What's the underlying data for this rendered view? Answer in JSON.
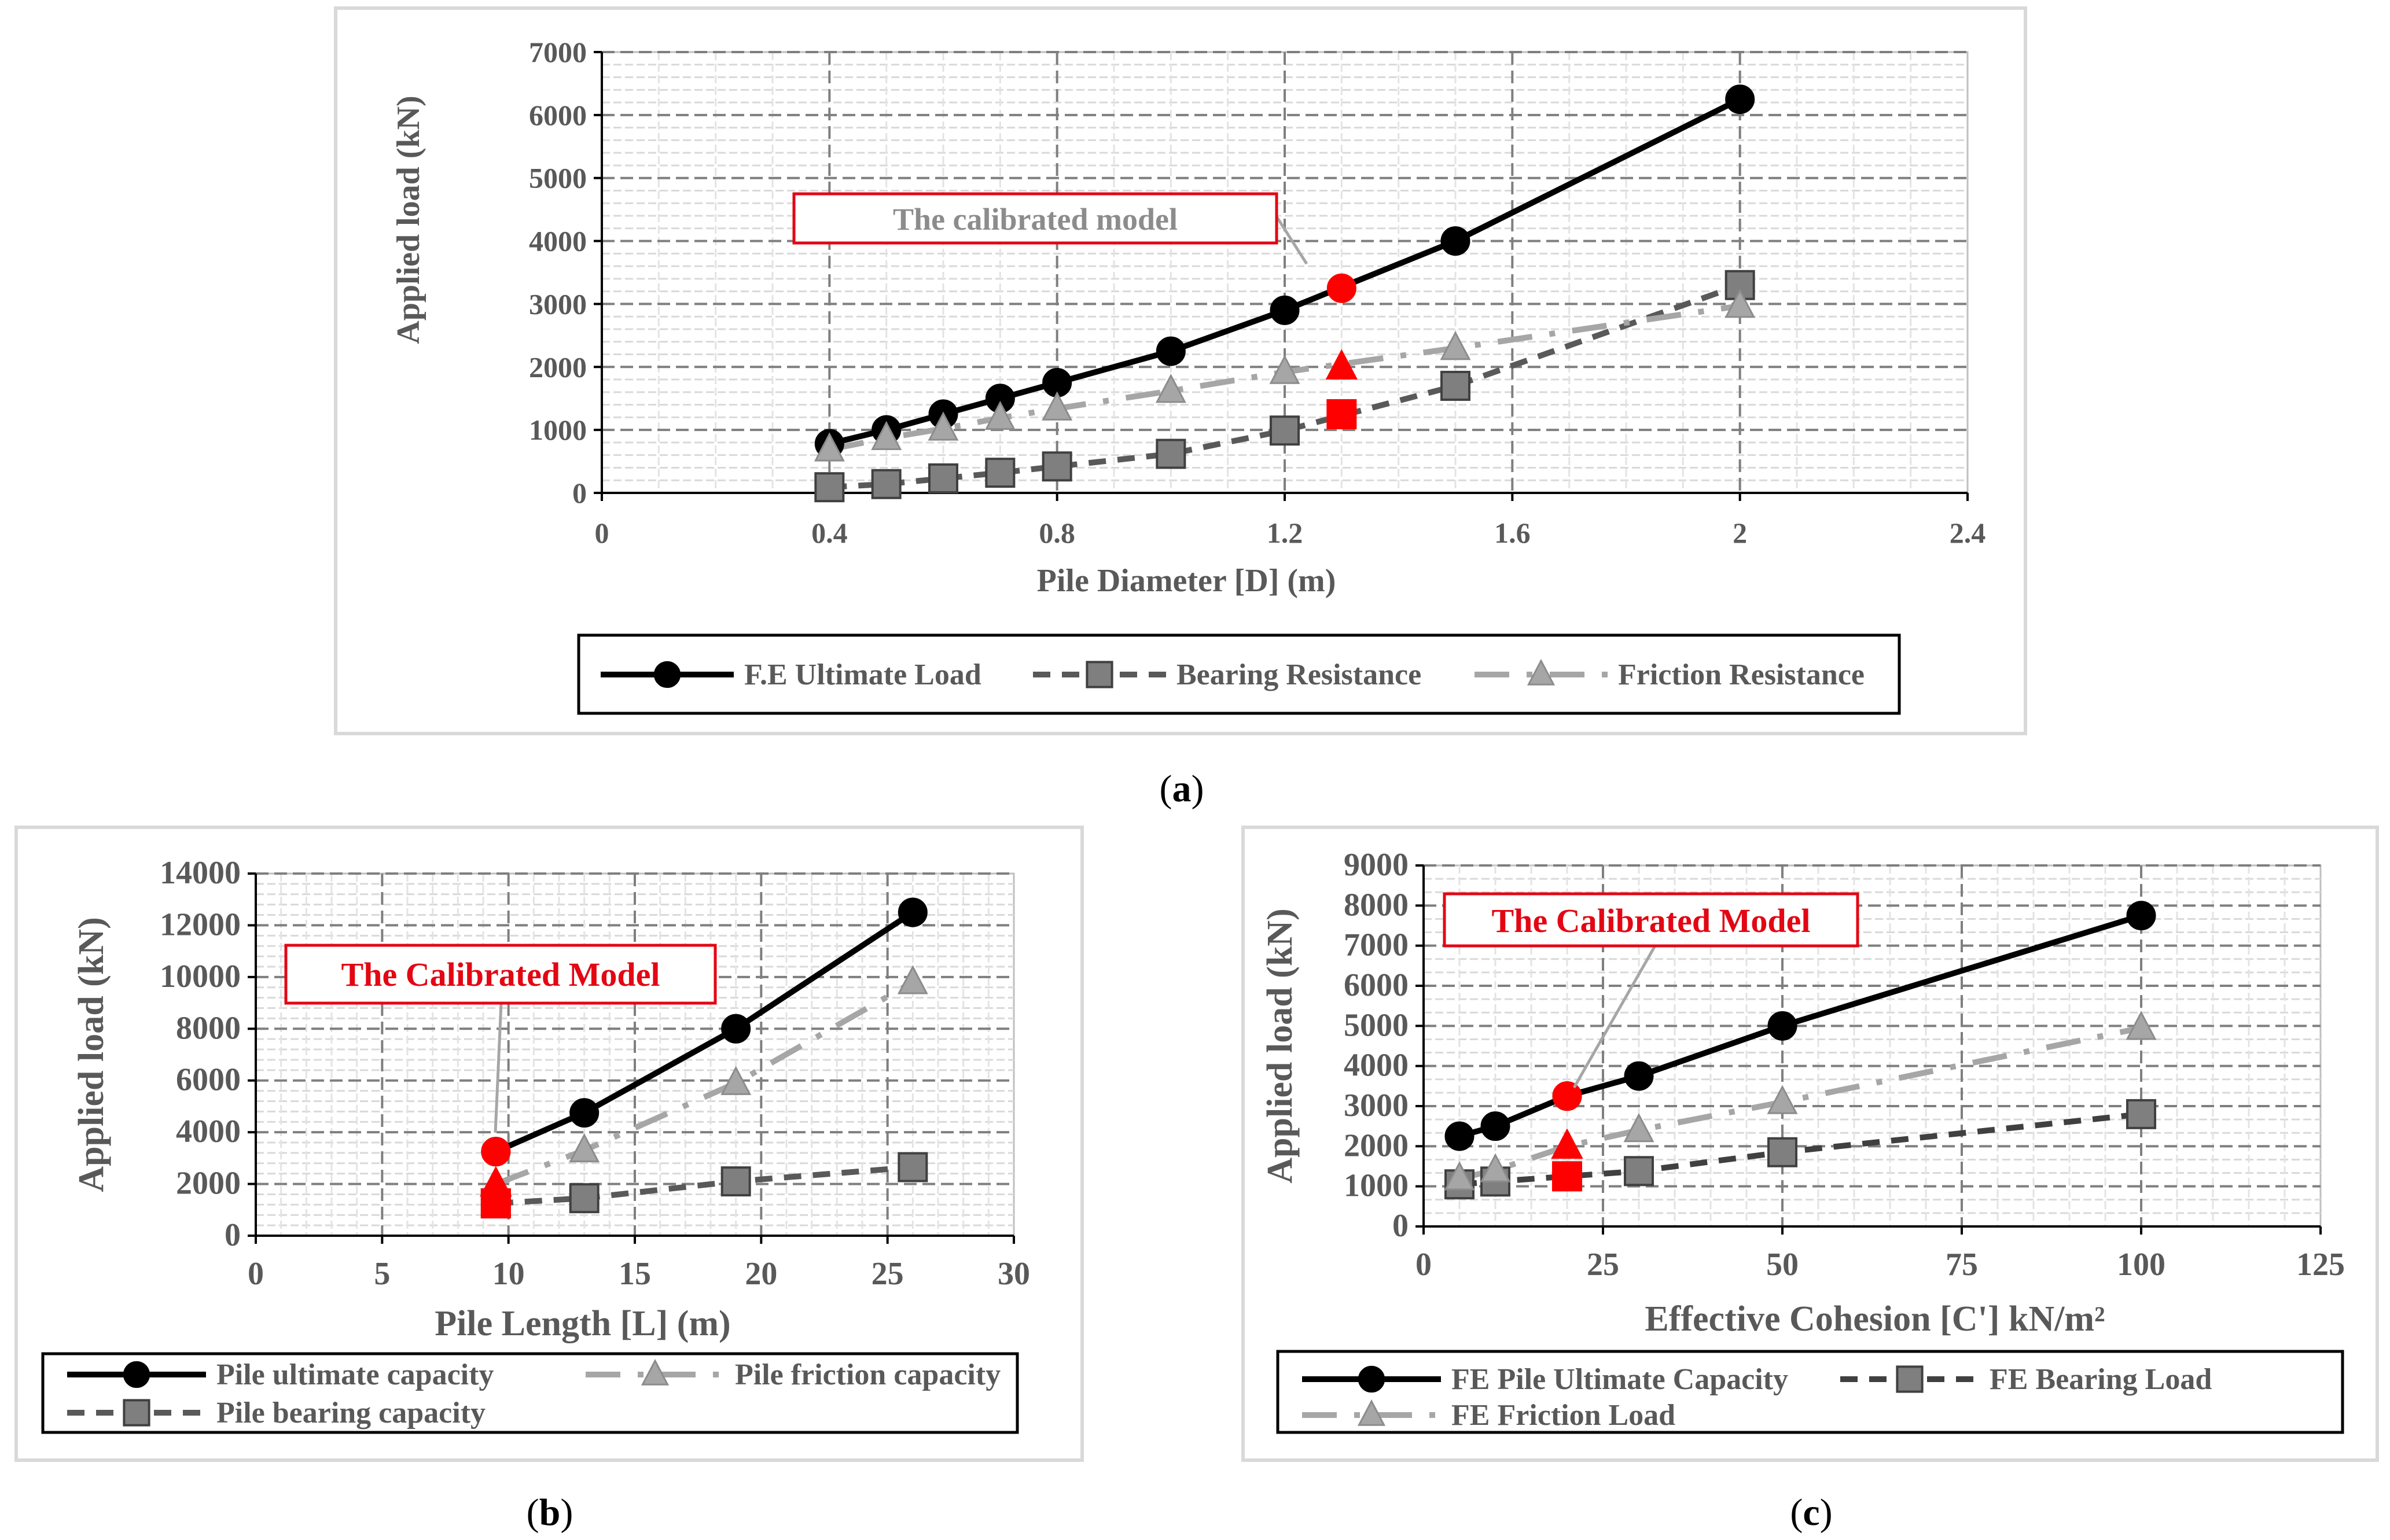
{
  "panels": {
    "a": {
      "caption_letter": "a",
      "chart_data": {
        "type": "line",
        "title": "",
        "xlabel": "Pile Diameter [D] (m)",
        "ylabel": "Applied load (kN)",
        "xlim": [
          0,
          2.4
        ],
        "ylim": [
          0,
          7000
        ],
        "xticks": [
          0,
          0.4,
          0.8,
          1.2,
          1.6,
          2,
          2.4
        ],
        "xtick_labels": [
          "0",
          "0.4",
          "0.8",
          "1.2",
          "1.6",
          "2",
          "2.4"
        ],
        "yticks": [
          0,
          1000,
          2000,
          3000,
          4000,
          5000,
          6000,
          7000
        ],
        "ytick_labels": [
          "0",
          "1000",
          "2000",
          "3000",
          "4000",
          "5000",
          "6000",
          "7000"
        ],
        "series": [
          {
            "name": "F.E Ultimate Load",
            "style": "solid-circle",
            "color": "#000000",
            "x": [
              0.4,
              0.5,
              0.6,
              0.7,
              0.8,
              1.0,
              1.2,
              1.5,
              2.0
            ],
            "y": [
              780,
              1000,
              1250,
              1500,
              1750,
              2250,
              2900,
              4000,
              6250
            ]
          },
          {
            "name": "Bearing Resistance",
            "style": "dash-square",
            "color": "#595959",
            "x": [
              0.4,
              0.5,
              0.6,
              0.7,
              0.8,
              1.0,
              1.2,
              1.5,
              2.0
            ],
            "y": [
              90,
              140,
              230,
              320,
              420,
              620,
              990,
              1700,
              3300
            ]
          },
          {
            "name": "Friction Resistance",
            "style": "longdash-triangle",
            "color": "#a6a6a6",
            "x": [
              0.4,
              0.5,
              0.6,
              0.7,
              0.8,
              1.0,
              1.2,
              1.5,
              2.0
            ],
            "y": [
              690,
              870,
              1020,
              1190,
              1340,
              1620,
              1920,
              2300,
              2970
            ]
          }
        ],
        "calibrated": {
          "x": 1.3,
          "ultimate": 3250,
          "friction": 2000,
          "bearing": 1250
        },
        "callout": {
          "text": "The calibrated model",
          "legend_position": "below"
        }
      }
    },
    "b": {
      "caption_letter": "b",
      "chart_data": {
        "type": "line",
        "title": "",
        "xlabel": "Pile Length [L] (m)",
        "ylabel": "Applied load (kN)",
        "xlim": [
          0,
          30
        ],
        "ylim": [
          0,
          14000
        ],
        "xticks": [
          0,
          5,
          10,
          15,
          20,
          25,
          30
        ],
        "xtick_labels": [
          "0",
          "5",
          "10",
          "15",
          "20",
          "25",
          "30"
        ],
        "yticks": [
          0,
          2000,
          4000,
          6000,
          8000,
          10000,
          12000,
          14000
        ],
        "ytick_labels": [
          "0",
          "2000",
          "4000",
          "6000",
          "8000",
          "10000",
          "12000",
          "14000"
        ],
        "series": [
          {
            "name": "Pile ultimate capacity",
            "style": "solid-circle",
            "color": "#000000",
            "x": [
              9.5,
              13,
              19,
              26
            ],
            "y": [
              3250,
              4750,
              8000,
              12500
            ]
          },
          {
            "name": "Pile friction capacity",
            "style": "longdash-triangle",
            "color": "#a6a6a6",
            "x": [
              9.5,
              13,
              19,
              26
            ],
            "y": [
              2000,
              3300,
              5900,
              9800
            ]
          },
          {
            "name": "Pile bearing capacity",
            "style": "dash-square",
            "color": "#595959",
            "x": [
              9.5,
              13,
              19,
              26
            ],
            "y": [
              1250,
              1450,
              2100,
              2650
            ]
          }
        ],
        "calibrated": {
          "x": 9.5,
          "ultimate": 3250,
          "friction": 2000,
          "bearing": 1250
        },
        "callout": {
          "text": "The Calibrated Model",
          "legend_position": "below"
        }
      }
    },
    "c": {
      "caption_letter": "c",
      "chart_data": {
        "type": "line",
        "title": "",
        "xlabel": "Effective Cohesion [C'] kN/m²",
        "ylabel": "Applied load (kN)",
        "xlim": [
          0,
          125
        ],
        "ylim": [
          0,
          9000
        ],
        "xticks": [
          0,
          25,
          50,
          75,
          100,
          125
        ],
        "xtick_labels": [
          "0",
          "25",
          "50",
          "75",
          "100",
          "125"
        ],
        "yticks": [
          0,
          1000,
          2000,
          3000,
          4000,
          5000,
          6000,
          7000,
          8000,
          9000
        ],
        "ytick_labels": [
          "0",
          "1000",
          "2000",
          "3000",
          "4000",
          "5000",
          "6000",
          "7000",
          "8000",
          "9000"
        ],
        "series": [
          {
            "name": "FE Pile Ultimate Capacity",
            "style": "solid-circle",
            "color": "#000000",
            "x": [
              5,
              10,
              20,
              30,
              50,
              100
            ],
            "y": [
              2250,
              2500,
              3250,
              3750,
              5000,
              7750
            ]
          },
          {
            "name": "FE Bearing Load",
            "style": "dash-square",
            "color": "#404040",
            "x": [
              5,
              10,
              20,
              30,
              50,
              100
            ],
            "y": [
              1050,
              1120,
              1250,
              1380,
              1850,
              2800
            ]
          },
          {
            "name": "FE Friction Load",
            "style": "longdash-triangle",
            "color": "#a6a6a6",
            "x": [
              5,
              10,
              20,
              30,
              50,
              100
            ],
            "y": [
              1200,
              1400,
              2000,
              2400,
              3100,
              4950
            ]
          }
        ],
        "calibrated": {
          "x": 20,
          "ultimate": 3250,
          "friction": 2000,
          "bearing": 1250
        },
        "callout": {
          "text": "The Calibrated Model",
          "legend_position": "below"
        }
      }
    }
  }
}
